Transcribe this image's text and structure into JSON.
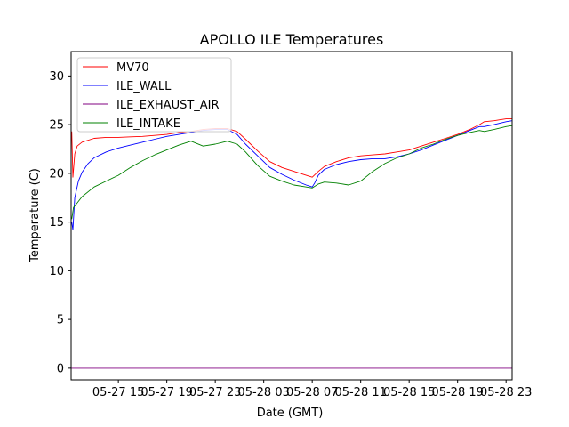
{
  "chart_data": {
    "type": "line",
    "title": "APOLLO ILE Temperatures",
    "xlabel": "Date (GMT)",
    "ylabel": "Temperature (C)",
    "ylim": [
      -1.2,
      32.5
    ],
    "xlim": [
      11.1,
      47.5
    ],
    "x_unit": "hours since 05-27 00:00 GMT",
    "yticks": [
      0,
      5,
      10,
      15,
      20,
      25,
      30
    ],
    "xticks": [
      {
        "value": 15,
        "label": "05-27 15"
      },
      {
        "value": 19,
        "label": "05-27 19"
      },
      {
        "value": 23,
        "label": "05-27 23"
      },
      {
        "value": 27,
        "label": "05-28 03"
      },
      {
        "value": 31,
        "label": "05-28 07"
      },
      {
        "value": 35,
        "label": "05-28 11"
      },
      {
        "value": 39,
        "label": "05-28 15"
      },
      {
        "value": 43,
        "label": "05-28 19"
      },
      {
        "value": 47,
        "label": "05-28 23"
      }
    ],
    "legend_position": "top-left",
    "grid": false,
    "series": [
      {
        "name": "MV70",
        "color": "#ff0000",
        "x": [
          11.15,
          11.25,
          11.4,
          11.6,
          12.0,
          13.0,
          14.0,
          15.0,
          16.0,
          17.0,
          18.0,
          19.0,
          20.0,
          21.0,
          22.0,
          23.0,
          24.0,
          24.8,
          25.5,
          26.5,
          27.5,
          28.5,
          29.5,
          30.5,
          31.0,
          31.5,
          32.0,
          33.0,
          34.0,
          35.0,
          36.0,
          37.0,
          38.0,
          39.0,
          40.0,
          41.0,
          42.0,
          43.0,
          44.0,
          44.8,
          45.2,
          46.0,
          47.0,
          47.5
        ],
        "y": [
          24.3,
          19.6,
          22.0,
          22.8,
          23.2,
          23.6,
          23.7,
          23.7,
          23.75,
          23.8,
          23.9,
          24.0,
          24.2,
          24.3,
          24.5,
          24.6,
          24.6,
          24.3,
          23.5,
          22.3,
          21.2,
          20.6,
          20.2,
          19.8,
          19.6,
          20.2,
          20.7,
          21.2,
          21.6,
          21.8,
          21.9,
          22.0,
          22.2,
          22.4,
          22.8,
          23.2,
          23.6,
          24.0,
          24.5,
          25.0,
          25.3,
          25.4,
          25.6,
          25.6
        ]
      },
      {
        "name": "ILE_WALL",
        "color": "#0000ff",
        "x": [
          11.15,
          11.25,
          11.4,
          11.7,
          12.0,
          12.5,
          13.0,
          14.0,
          15.0,
          16.0,
          17.0,
          18.0,
          19.0,
          20.0,
          21.0,
          22.0,
          23.0,
          24.0,
          24.8,
          25.5,
          26.5,
          27.5,
          28.5,
          29.5,
          30.5,
          31.0,
          31.2,
          31.5,
          32.0,
          33.0,
          34.0,
          35.0,
          36.0,
          37.0,
          38.0,
          39.0,
          40.0,
          41.0,
          42.0,
          43.0,
          44.0,
          44.8,
          45.2,
          46.0,
          47.0,
          47.5
        ],
        "y": [
          15.0,
          14.2,
          17.5,
          19.2,
          20.1,
          21.0,
          21.6,
          22.2,
          22.6,
          22.9,
          23.2,
          23.5,
          23.8,
          24.0,
          24.2,
          24.4,
          24.5,
          24.5,
          24.0,
          23.0,
          21.8,
          20.6,
          19.9,
          19.3,
          18.8,
          18.6,
          19.0,
          19.8,
          20.4,
          20.9,
          21.2,
          21.4,
          21.5,
          21.5,
          21.7,
          22.0,
          22.4,
          22.9,
          23.4,
          23.9,
          24.4,
          24.8,
          24.8,
          25.0,
          25.3,
          25.4
        ]
      },
      {
        "name": "ILE_EXHAUST_AIR",
        "color": "#800080",
        "x": [
          11.1,
          47.5
        ],
        "y": [
          0,
          0
        ]
      },
      {
        "name": "ILE_INTAKE",
        "color": "#008000",
        "x": [
          11.15,
          11.3,
          11.5,
          12.0,
          13.0,
          14.0,
          15.0,
          16.0,
          17.0,
          18.0,
          19.0,
          20.0,
          21.0,
          22.0,
          23.0,
          24.0,
          24.8,
          25.5,
          26.5,
          27.5,
          28.5,
          29.5,
          30.5,
          31.0,
          31.5,
          32.0,
          33.0,
          34.0,
          35.0,
          36.0,
          37.0,
          38.0,
          39.0,
          40.0,
          41.0,
          42.0,
          43.0,
          44.0,
          44.8,
          45.2,
          46.0,
          47.0,
          47.5
        ],
        "y": [
          15.3,
          16.5,
          16.8,
          17.6,
          18.6,
          19.2,
          19.8,
          20.6,
          21.3,
          21.9,
          22.4,
          22.9,
          23.3,
          22.8,
          23.0,
          23.3,
          23.0,
          22.2,
          20.8,
          19.7,
          19.2,
          18.8,
          18.6,
          18.5,
          18.9,
          19.1,
          19.0,
          18.8,
          19.2,
          20.2,
          21.0,
          21.6,
          22.0,
          22.6,
          23.0,
          23.5,
          23.9,
          24.2,
          24.4,
          24.3,
          24.5,
          24.8,
          24.9
        ]
      }
    ]
  }
}
